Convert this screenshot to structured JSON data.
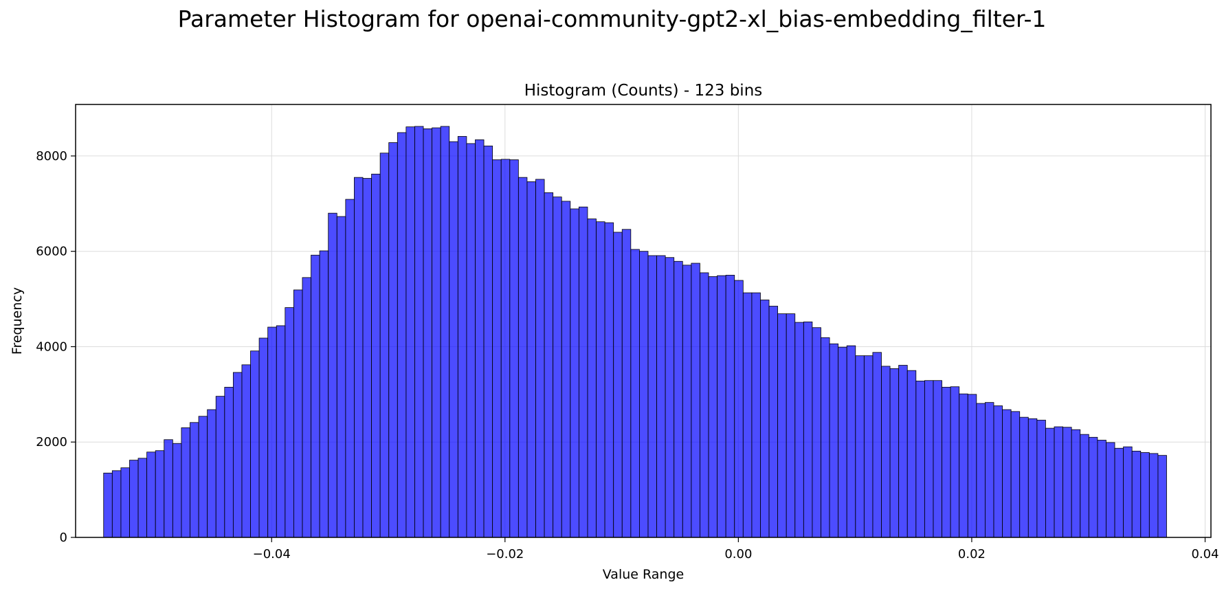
{
  "figure": {
    "suptitle": "Parameter Histogram for openai-community-gpt2-xl_bias-embedding_filter-1"
  },
  "chart_data": {
    "type": "bar",
    "title": "Histogram (Counts) - 123 bins",
    "xlabel": "Value Range",
    "ylabel": "Frequency",
    "bins": 123,
    "bin_start": -0.0544,
    "bin_end": 0.0367,
    "xlim": [
      -0.0568,
      0.0405
    ],
    "ylim": [
      0,
      9080
    ],
    "xticks": [
      -0.04,
      -0.02,
      0.0,
      0.02,
      0.04
    ],
    "xtick_labels": [
      "−0.04",
      "−0.02",
      "0.00",
      "0.02",
      "0.04"
    ],
    "yticks": [
      0,
      2000,
      4000,
      6000,
      8000
    ],
    "ytick_labels": [
      "0",
      "2000",
      "4000",
      "6000",
      "8000"
    ],
    "grid": true,
    "bar_color": "#0000ff",
    "bar_alpha": 0.7,
    "edge_color": "#000000",
    "values": [
      1350,
      1400,
      1460,
      1620,
      1660,
      1790,
      1820,
      2050,
      1970,
      2300,
      2410,
      2540,
      2680,
      2960,
      3150,
      3460,
      3620,
      3910,
      4180,
      4410,
      4440,
      4820,
      5190,
      5450,
      5920,
      6010,
      6800,
      6730,
      7090,
      7550,
      7530,
      7620,
      8060,
      8280,
      8490,
      8610,
      8620,
      8570,
      8590,
      8620,
      8300,
      8410,
      8260,
      8340,
      8210,
      7920,
      7930,
      7920,
      7550,
      7460,
      7510,
      7230,
      7140,
      7050,
      6890,
      6930,
      6680,
      6620,
      6600,
      6400,
      6460,
      6040,
      6000,
      5910,
      5910,
      5870,
      5790,
      5710,
      5750,
      5550,
      5470,
      5490,
      5500,
      5390,
      5130,
      5130,
      4980,
      4850,
      4690,
      4690,
      4510,
      4520,
      4400,
      4190,
      4060,
      3990,
      4020,
      3810,
      3810,
      3880,
      3590,
      3540,
      3610,
      3500,
      3280,
      3290,
      3290,
      3150,
      3160,
      3010,
      3000,
      2810,
      2830,
      2760,
      2680,
      2640,
      2520,
      2490,
      2460,
      2290,
      2320,
      2310,
      2260,
      2160,
      2100,
      2040,
      1990,
      1870,
      1900,
      1810,
      1780,
      1760,
      1720
    ]
  }
}
